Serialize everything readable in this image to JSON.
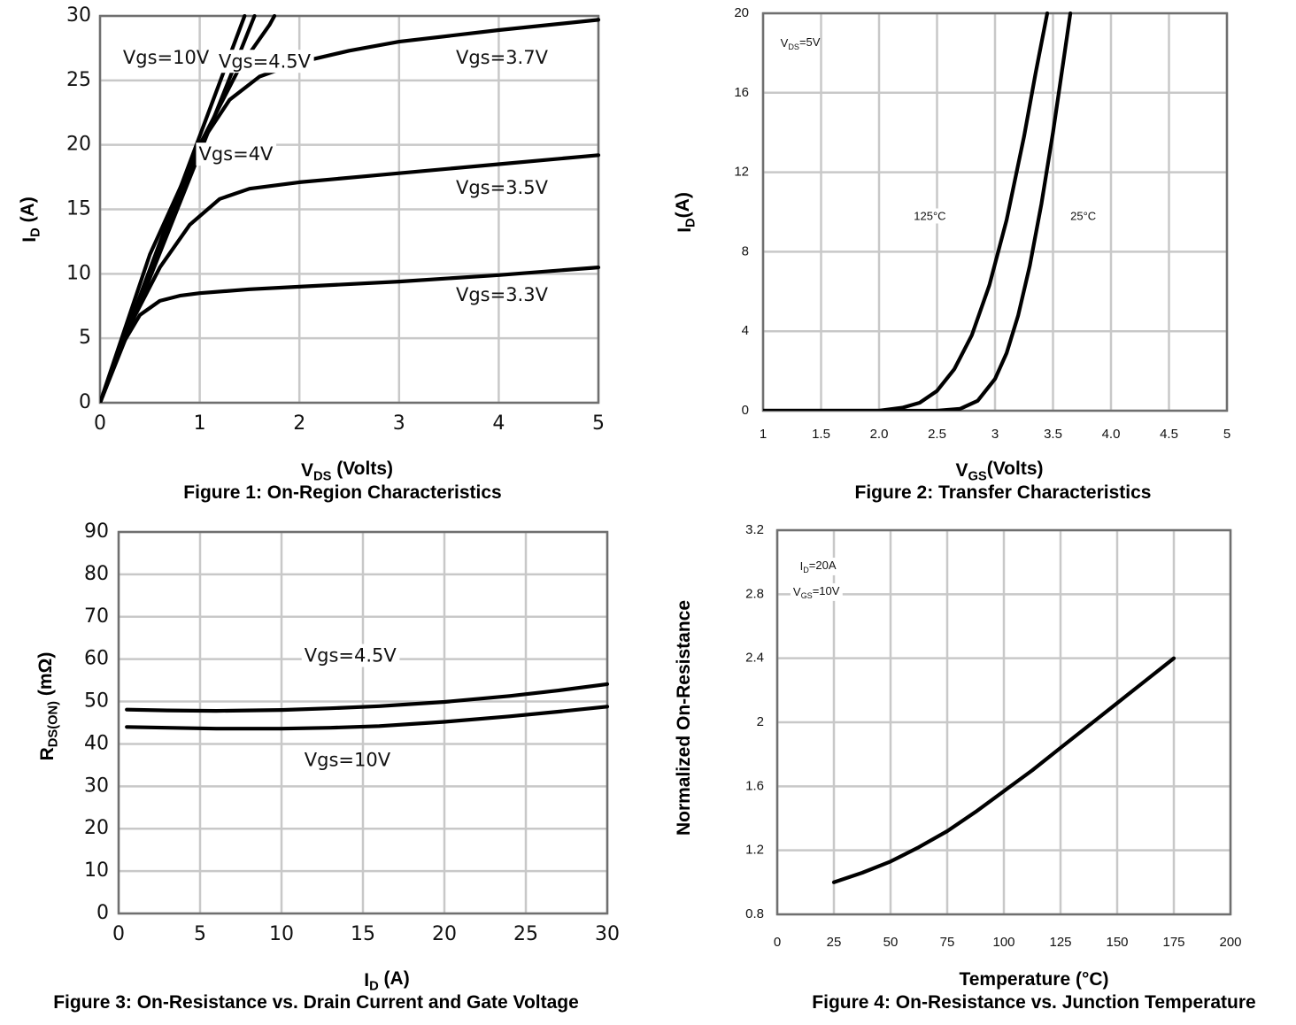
{
  "colors": {
    "line": "#000000",
    "grid": "#c8c8c8",
    "frame": "#6f6f6f",
    "background": "#ffffff"
  },
  "chart_data": [
    {
      "id": "fig1",
      "type": "line",
      "caption": "Figure 1: On-Region Characteristics",
      "xlabel": {
        "main": "V",
        "sub": "DS",
        "rest": " (Volts)"
      },
      "ylabel": {
        "main": "I",
        "sub": "D",
        "rest": " (A)"
      },
      "xlim": [
        0,
        5
      ],
      "ylim": [
        0,
        30
      ],
      "xticks": [
        "0",
        "1",
        "2",
        "3",
        "4",
        "5"
      ],
      "yticks": [
        "0",
        "5",
        "10",
        "15",
        "20",
        "25",
        "30"
      ],
      "xtick_values": [
        0,
        1,
        2,
        3,
        4,
        5
      ],
      "ytick_values": [
        0,
        5,
        10,
        15,
        20,
        25,
        30
      ],
      "grid": true,
      "series": [
        {
          "name": "Vgs=10V",
          "x": [
            0,
            1.45
          ],
          "y": [
            0,
            30
          ]
        },
        {
          "name": "Vgs=4.5V",
          "x": [
            0,
            1.55
          ],
          "y": [
            0,
            30
          ]
        },
        {
          "name": "Vgs=4V",
          "x": [
            0,
            1.0,
            1.4,
            1.7,
            1.75
          ],
          "y": [
            0,
            20,
            26,
            29.3,
            30
          ]
        },
        {
          "name": "Vgs=3.7V",
          "x": [
            0,
            0.5,
            1.0,
            1.3,
            1.6,
            2.0,
            2.5,
            3.0,
            4.0,
            5.0
          ],
          "y": [
            0,
            11.5,
            20,
            23.5,
            25.3,
            26.4,
            27.3,
            28.0,
            28.9,
            29.7
          ]
        },
        {
          "name": "Vgs=3.5V",
          "x": [
            0,
            0.3,
            0.6,
            0.9,
            1.2,
            1.5,
            2.0,
            3.0,
            4.0,
            5.0
          ],
          "y": [
            0,
            6,
            10.5,
            13.8,
            15.8,
            16.6,
            17.1,
            17.8,
            18.5,
            19.2
          ]
        },
        {
          "name": "Vgs=3.3V",
          "x": [
            0,
            0.2,
            0.4,
            0.6,
            0.8,
            1.0,
            1.5,
            2.0,
            3.0,
            4.0,
            5.0
          ],
          "y": [
            0,
            4.2,
            6.8,
            7.9,
            8.3,
            8.5,
            8.8,
            9.0,
            9.4,
            9.9,
            10.5
          ]
        }
      ],
      "annotations": [
        {
          "text": "Vgs=10V",
          "x": 0.23,
          "y": 26.3,
          "anchor": "start"
        },
        {
          "text": "Vgs=4.5V",
          "x": 1.19,
          "y": 26.0,
          "anchor": "start",
          "bg": true
        },
        {
          "text": "Vgs=3.7V",
          "x": 3.57,
          "y": 26.3,
          "anchor": "start"
        },
        {
          "text": "Vgs=4V",
          "x": 0.99,
          "y": 18.8,
          "anchor": "start",
          "bg": true
        },
        {
          "text": "Vgs=3.5V",
          "x": 3.57,
          "y": 16.2,
          "anchor": "start"
        },
        {
          "text": "Vgs=3.3V",
          "x": 3.57,
          "y": 7.9,
          "anchor": "start"
        }
      ]
    },
    {
      "id": "fig2",
      "type": "line",
      "caption": "Figure 2: Transfer Characteristics",
      "xlabel": {
        "main": "V",
        "sub": "GS",
        "rest": "(Volts)"
      },
      "ylabel": {
        "main": "I",
        "sub": "D",
        "rest": "(A)"
      },
      "xlim": [
        1,
        5
      ],
      "ylim": [
        0,
        20
      ],
      "xticks": [
        "1",
        "1.5",
        "2.0",
        "2.5",
        "3",
        "3.5",
        "4.0",
        "4.5",
        "5"
      ],
      "yticks": [
        "0",
        "4",
        "8",
        "12",
        "16",
        "20"
      ],
      "xtick_values": [
        1,
        1.5,
        2,
        2.5,
        3,
        3.5,
        4,
        4.5,
        5
      ],
      "ytick_values": [
        0,
        4,
        8,
        12,
        16,
        20
      ],
      "grid": true,
      "series": [
        {
          "name": "125°C",
          "x": [
            1.0,
            2.0,
            2.2,
            2.35,
            2.5,
            2.65,
            2.8,
            2.95,
            3.1,
            3.25,
            3.35,
            3.45
          ],
          "y": [
            0,
            0,
            0.15,
            0.4,
            1.0,
            2.1,
            3.8,
            6.3,
            9.6,
            13.8,
            17.0,
            20
          ]
        },
        {
          "name": "25°C",
          "x": [
            1.0,
            2.5,
            2.7,
            2.85,
            3.0,
            3.1,
            3.2,
            3.3,
            3.4,
            3.5,
            3.6,
            3.65
          ],
          "y": [
            0,
            0,
            0.1,
            0.5,
            1.6,
            2.9,
            4.8,
            7.3,
            10.4,
            14.0,
            18.0,
            20
          ]
        }
      ],
      "annotations": [
        {
          "text": "V_DS=5V",
          "x": 1.15,
          "y": 18.3,
          "anchor": "start",
          "sub": true,
          "main": "V",
          "subtext": "DS",
          "rest": "=5V"
        },
        {
          "text": "125°C",
          "x": 2.3,
          "y": 9.6,
          "anchor": "start",
          "bg": true
        },
        {
          "text": "25°C",
          "x": 3.65,
          "y": 9.6,
          "anchor": "start",
          "bg": true
        }
      ]
    },
    {
      "id": "fig3",
      "type": "line",
      "caption": "Figure 3: On-Resistance vs. Drain Current and Gate Voltage",
      "xlabel": {
        "main": "I",
        "sub": "D",
        "rest": " (A)"
      },
      "ylabel": {
        "main": "R",
        "sub": "DS(ON)",
        "rest": " (mΩ)"
      },
      "xlim": [
        0,
        30
      ],
      "ylim": [
        0,
        90
      ],
      "xticks": [
        "0",
        "5",
        "10",
        "15",
        "20",
        "25",
        "30"
      ],
      "yticks": [
        "0",
        "10",
        "20",
        "30",
        "40",
        "50",
        "60",
        "70",
        "80",
        "90"
      ],
      "xtick_values": [
        0,
        5,
        10,
        15,
        20,
        25,
        30
      ],
      "ytick_values": [
        0,
        10,
        20,
        30,
        40,
        50,
        60,
        70,
        80,
        90
      ],
      "grid": true,
      "series": [
        {
          "name": "Vgs=4.5V",
          "x": [
            0.5,
            3,
            6,
            10,
            13,
            16,
            20,
            24,
            27,
            30
          ],
          "y": [
            48.1,
            47.9,
            47.8,
            48.0,
            48.4,
            48.9,
            49.9,
            51.3,
            52.6,
            54.1
          ]
        },
        {
          "name": "Vgs=10V",
          "x": [
            0.5,
            3,
            6,
            10,
            13,
            16,
            20,
            24,
            27,
            30
          ],
          "y": [
            44.0,
            43.8,
            43.6,
            43.6,
            43.8,
            44.2,
            45.2,
            46.5,
            47.6,
            48.8
          ]
        }
      ],
      "annotations": [
        {
          "text": "Vgs=4.5V",
          "x": 11.4,
          "y": 59.4,
          "anchor": "start",
          "bg": true
        },
        {
          "text": "Vgs=10V",
          "x": 11.4,
          "y": 34.8,
          "anchor": "start"
        }
      ]
    },
    {
      "id": "fig4",
      "type": "line",
      "caption": "Figure 4: On-Resistance vs. Junction Temperature",
      "xlabel": {
        "main": "Temperature (°C)",
        "sub": "",
        "rest": ""
      },
      "ylabel": {
        "main": "Normalized On-Resistance",
        "sub": "",
        "rest": ""
      },
      "xlim": [
        0,
        200
      ],
      "ylim": [
        0.8,
        3.2
      ],
      "xticks": [
        "0",
        "25",
        "50",
        "75",
        "100",
        "125",
        "150",
        "175",
        "200"
      ],
      "yticks": [
        "0.8",
        "1.2",
        "1.6",
        "2",
        "2.4",
        "2.8",
        "3.2"
      ],
      "xtick_values": [
        0,
        25,
        50,
        75,
        100,
        125,
        150,
        175,
        200
      ],
      "ytick_values": [
        0.8,
        1.2,
        1.6,
        2,
        2.4,
        2.8,
        3.2
      ],
      "grid": true,
      "series": [
        {
          "name": "Normalized On-Resistance",
          "x": [
            25,
            37.5,
            50,
            62.5,
            75,
            87.5,
            100,
            112.5,
            125,
            137.5,
            150,
            162.5,
            175
          ],
          "y": [
            1.0,
            1.06,
            1.13,
            1.22,
            1.32,
            1.44,
            1.57,
            1.7,
            1.84,
            1.98,
            2.12,
            2.26,
            2.4
          ]
        }
      ],
      "annotations": [
        {
          "text": "I_D=20A",
          "x": 10,
          "y": 2.95,
          "anchor": "start",
          "sub": true,
          "main": "I",
          "subtext": "D",
          "rest": "=20A",
          "bg": true
        },
        {
          "text": "V_GS=10V",
          "x": 7,
          "y": 2.79,
          "anchor": "start",
          "sub": true,
          "main": "V",
          "subtext": "GS",
          "rest": "=10V",
          "bg": true
        }
      ]
    }
  ]
}
